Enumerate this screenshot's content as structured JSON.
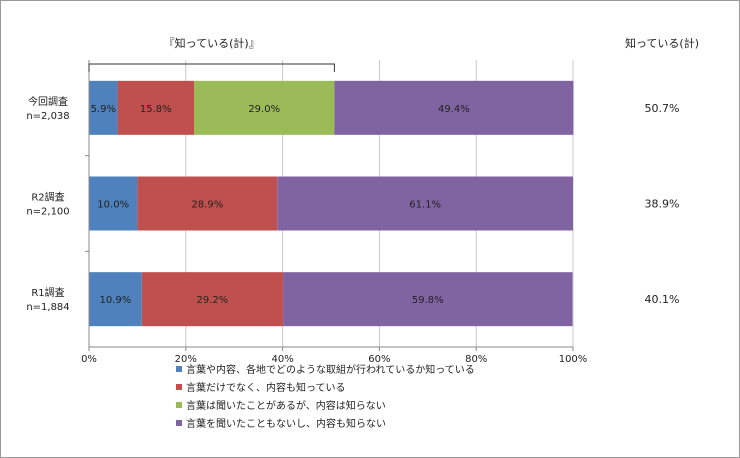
{
  "chart_data": {
    "type": "bar",
    "orientation": "horizontal",
    "stacked": true,
    "categories": [
      {
        "name": "今回調査",
        "n": "n=2,038"
      },
      {
        "name": "R2調査",
        "n": "n=2,100"
      },
      {
        "name": "R1調査",
        "n": "n=1,884"
      }
    ],
    "series": [
      {
        "name": "言葉や内容、各地でどのような取組が行われているか知っている",
        "color": "#4f81bd",
        "values": [
          5.9,
          10.0,
          10.9
        ],
        "labels": [
          "5.9%",
          "10.0%",
          "10.9%"
        ]
      },
      {
        "name": "言葉だけでなく、内容も知っている",
        "color": "#c0504d",
        "values": [
          15.8,
          28.9,
          29.2
        ],
        "labels": [
          "15.8%",
          "28.9%",
          "29.2%"
        ]
      },
      {
        "name": "言葉は聞いたことがあるが、内容は知らない",
        "color": "#9bbb59",
        "values": [
          29.0,
          0,
          0
        ],
        "labels": [
          "29.0%",
          "",
          ""
        ]
      },
      {
        "name": "言葉を聞いたこともないし、内容も知らない",
        "color": "#8064a2",
        "values": [
          49.4,
          61.1,
          59.8
        ],
        "labels": [
          "49.4%",
          "61.1%",
          "59.8%"
        ]
      }
    ],
    "x_ticks": [
      "0%",
      "20%",
      "40%",
      "60%",
      "80%",
      "100%"
    ],
    "xlim": [
      0,
      100
    ],
    "bracket_label": "『知っている(計)』",
    "right_header": "知っている(計)",
    "right_values": [
      "50.7%",
      "38.9%",
      "40.1%"
    ],
    "legend_position": "bottom"
  }
}
